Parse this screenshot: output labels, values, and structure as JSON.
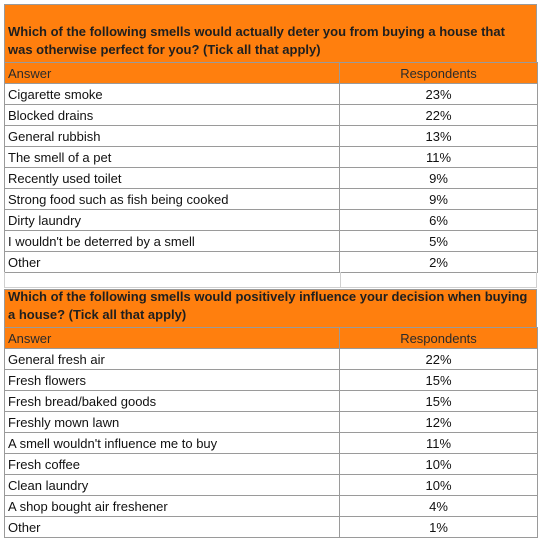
{
  "tables": [
    {
      "question": "Which of the following smells would actually deter you from buying a house that was otherwise perfect for you? (Tick all that apply)",
      "col_answer": "Answer",
      "col_respondents": "Respondents",
      "rows": [
        {
          "answer": "Cigarette smoke",
          "pct": "23%"
        },
        {
          "answer": "Blocked drains",
          "pct": "22%"
        },
        {
          "answer": "General rubbish",
          "pct": "13%"
        },
        {
          "answer": "The smell of a pet",
          "pct": "11%"
        },
        {
          "answer": "Recently used toilet",
          "pct": "9%"
        },
        {
          "answer": "Strong food such as fish being cooked",
          "pct": "9%"
        },
        {
          "answer": "Dirty laundry",
          "pct": "6%"
        },
        {
          "answer": "I wouldn't be deterred by a smell",
          "pct": "5%"
        },
        {
          "answer": "Other",
          "pct": "2%"
        }
      ]
    },
    {
      "question": "Which of the following smells would positively influence your decision when buying a house? (Tick all that apply)",
      "col_answer": "Answer",
      "col_respondents": "Respondents",
      "rows": [
        {
          "answer": "General fresh air",
          "pct": "22%"
        },
        {
          "answer": "Fresh flowers",
          "pct": "15%"
        },
        {
          "answer": "Fresh bread/baked goods",
          "pct": "15%"
        },
        {
          "answer": "Freshly mown lawn",
          "pct": "12%"
        },
        {
          "answer": "A smell wouldn't influence me to buy",
          "pct": "11%"
        },
        {
          "answer": "Fresh coffee",
          "pct": "10%"
        },
        {
          "answer": "Clean laundry",
          "pct": "10%"
        },
        {
          "answer": "A shop bought air freshener",
          "pct": "4%"
        },
        {
          "answer": "Other",
          "pct": "1%"
        }
      ]
    }
  ],
  "colors": {
    "header_orange": "#ff7f0e",
    "grid": "#9a9a9a"
  }
}
